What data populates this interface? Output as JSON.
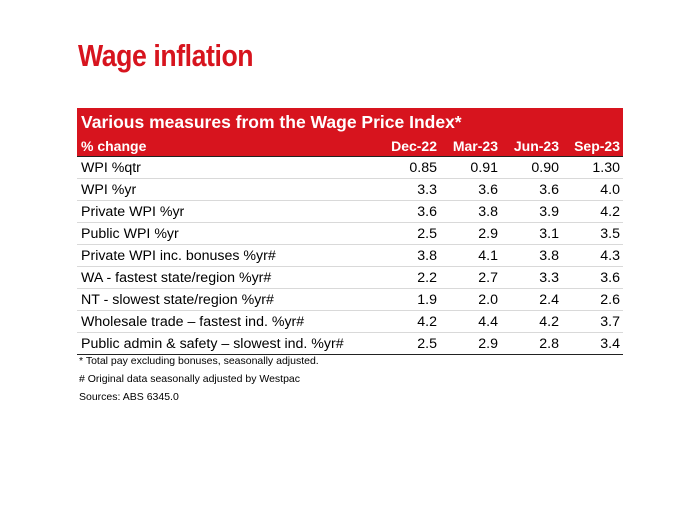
{
  "title": "Wage inflation",
  "table": {
    "banner": "Various measures from the Wage Price Index*",
    "header": {
      "label": "% change",
      "columns": [
        "Dec-22",
        "Mar-23",
        "Jun-23",
        "Sep-23"
      ]
    },
    "rows": [
      {
        "label": "WPI %qtr",
        "values": [
          "0.85",
          "0.91",
          "0.90",
          "1.30"
        ]
      },
      {
        "label": "WPI %yr",
        "values": [
          "3.3",
          "3.6",
          "3.6",
          "4.0"
        ]
      },
      {
        "label": "Private WPI %yr",
        "values": [
          "3.6",
          "3.8",
          "3.9",
          "4.2"
        ]
      },
      {
        "label": "Public WPI %yr",
        "values": [
          "2.5",
          "2.9",
          "3.1",
          "3.5"
        ]
      },
      {
        "label": "Private WPI inc. bonuses %yr#",
        "values": [
          "3.8",
          "4.1",
          "3.8",
          "4.3"
        ]
      },
      {
        "label": "WA   - fastest  state/region %yr#",
        "values": [
          "2.2",
          "2.7",
          "3.3",
          "3.6"
        ]
      },
      {
        "label": "NT -  slowest  state/region %yr#",
        "values": [
          "1.9",
          "2.0",
          "2.4",
          "2.6"
        ]
      },
      {
        "label": "Wholesale trade – fastest ind. %yr#",
        "values": [
          "4.2",
          "4.4",
          "4.2",
          "3.7"
        ]
      },
      {
        "label": "Public admin & safety – slowest ind. %yr#",
        "values": [
          "2.5",
          "2.9",
          "2.8",
          "3.4"
        ]
      }
    ]
  },
  "notes": {
    "note1": "* Total pay excluding bonuses, seasonally adjusted.",
    "note2": "# Original data seasonally adjusted by Westpac",
    "sources": "Sources: ABS 6345.0"
  },
  "colors": {
    "accent": "#d7141e"
  }
}
